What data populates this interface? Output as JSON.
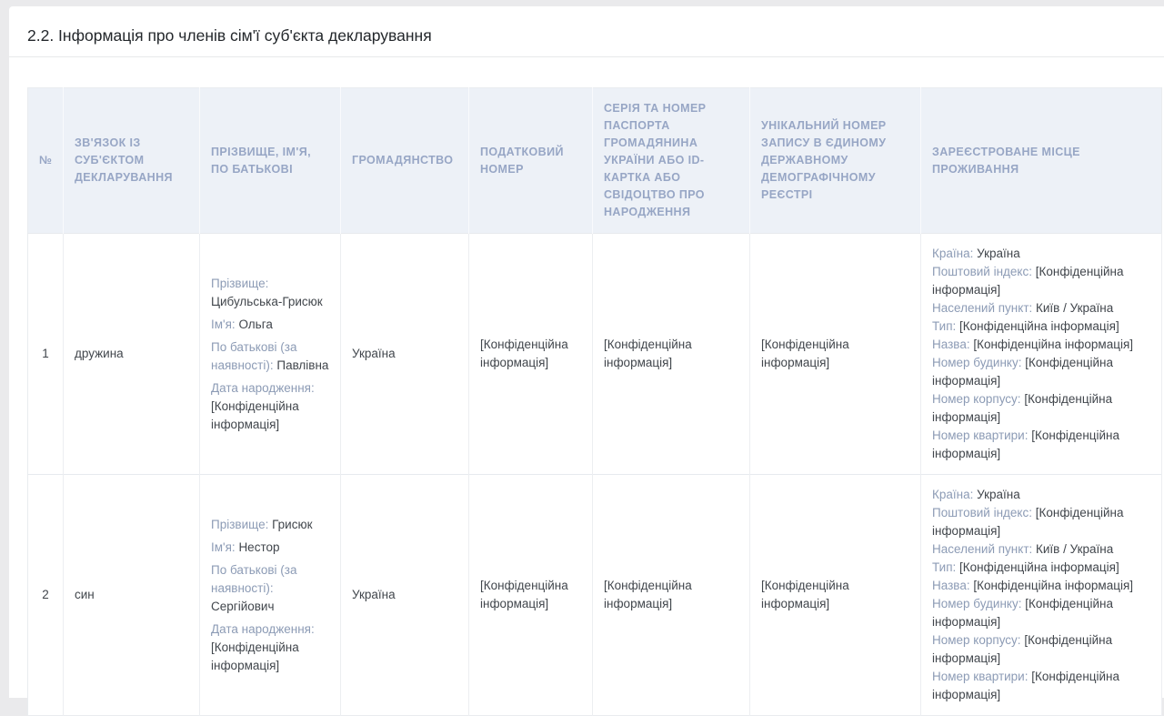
{
  "page": {
    "title": "2.2. Інформація про членів сім'ї суб'єкта декларування"
  },
  "colors": {
    "header_bg": "#edf1f7",
    "header_text": "#97a6c5",
    "label_text": "#8c9bb5",
    "value_text": "#41464c",
    "card_bg": "#ffffff",
    "page_bg": "#eaeaec"
  },
  "table": {
    "columns": [
      "№",
      "ЗВ'ЯЗОК ІЗ СУБ'ЄКТОМ ДЕКЛАРУВАННЯ",
      "ПРІЗВИЩЕ, ІМ'Я, ПО БАТЬКОВІ",
      "ГРОМАДЯНСТВО",
      "ПОДАТКОВИЙ НОМЕР",
      "СЕРІЯ ТА НОМЕР ПАСПОРТА ГРОМАДЯНИНА УКРАЇНИ АБО ID-КАРТКА АБО СВІДОЦТВО ПРО НАРОДЖЕННЯ",
      "УНІКАЛЬНИЙ НОМЕР ЗАПИСУ В ЄДИНОМУ ДЕРЖАВНОМУ ДЕМОГРАФІЧНОМУ РЕЄСТРІ",
      "ЗАРЕЄСТРОВАНЕ МІСЦЕ ПРОЖИВАННЯ"
    ],
    "rows": [
      {
        "num": "1",
        "relation": "дружина",
        "name_fields": [
          {
            "label": "Прізвище:",
            "value": "Цибульська-Грисюк"
          },
          {
            "label": "Ім'я:",
            "value": "Ольга"
          },
          {
            "label": "По батькові (за наявності):",
            "value": "Павлівна"
          },
          {
            "label": "Дата народження:",
            "value": "[Конфіденційна інформація]"
          }
        ],
        "citizenship": "Україна",
        "tax_number": "[Конфіденційна інформація]",
        "passport": "[Конфіденційна інформація]",
        "registry_number": "[Конфіденційна інформація]",
        "address_fields": [
          {
            "label": "Країна:",
            "value": "Україна"
          },
          {
            "label": "Поштовий індекс:",
            "value": "[Конфіденційна інформація]"
          },
          {
            "label": "Населений пункт:",
            "value": "Київ / Україна"
          },
          {
            "label": "Тип:",
            "value": "[Конфіденційна інформація]"
          },
          {
            "label": "Назва:",
            "value": "[Конфіденційна інформація]"
          },
          {
            "label": "Номер будинку:",
            "value": "[Конфіденційна інформація]"
          },
          {
            "label": "Номер корпусу:",
            "value": "[Конфіденційна інформація]"
          },
          {
            "label": "Номер квартири:",
            "value": "[Конфіденційна інформація]"
          }
        ]
      },
      {
        "num": "2",
        "relation": "син",
        "name_fields": [
          {
            "label": "Прізвище:",
            "value": "Грисюк"
          },
          {
            "label": "Ім'я:",
            "value": "Нестор"
          },
          {
            "label": "По батькові (за наявності):",
            "value": "Сергійович"
          },
          {
            "label": "Дата народження:",
            "value": "[Конфіденційна інформація]"
          }
        ],
        "citizenship": "Україна",
        "tax_number": "[Конфіденційна інформація]",
        "passport": "[Конфіденційна інформація]",
        "registry_number": "[Конфіденційна інформація]",
        "address_fields": [
          {
            "label": "Країна:",
            "value": "Україна"
          },
          {
            "label": "Поштовий індекс:",
            "value": "[Конфіденційна інформація]"
          },
          {
            "label": "Населений пункт:",
            "value": "Київ / Україна"
          },
          {
            "label": "Тип:",
            "value": "[Конфіденційна інформація]"
          },
          {
            "label": "Назва:",
            "value": "[Конфіденційна інформація]"
          },
          {
            "label": "Номер будинку:",
            "value": "[Конфіденційна інформація]"
          },
          {
            "label": "Номер корпусу:",
            "value": "[Конфіденційна інформація]"
          },
          {
            "label": "Номер квартири:",
            "value": "[Конфіденційна інформація]"
          }
        ]
      }
    ]
  }
}
